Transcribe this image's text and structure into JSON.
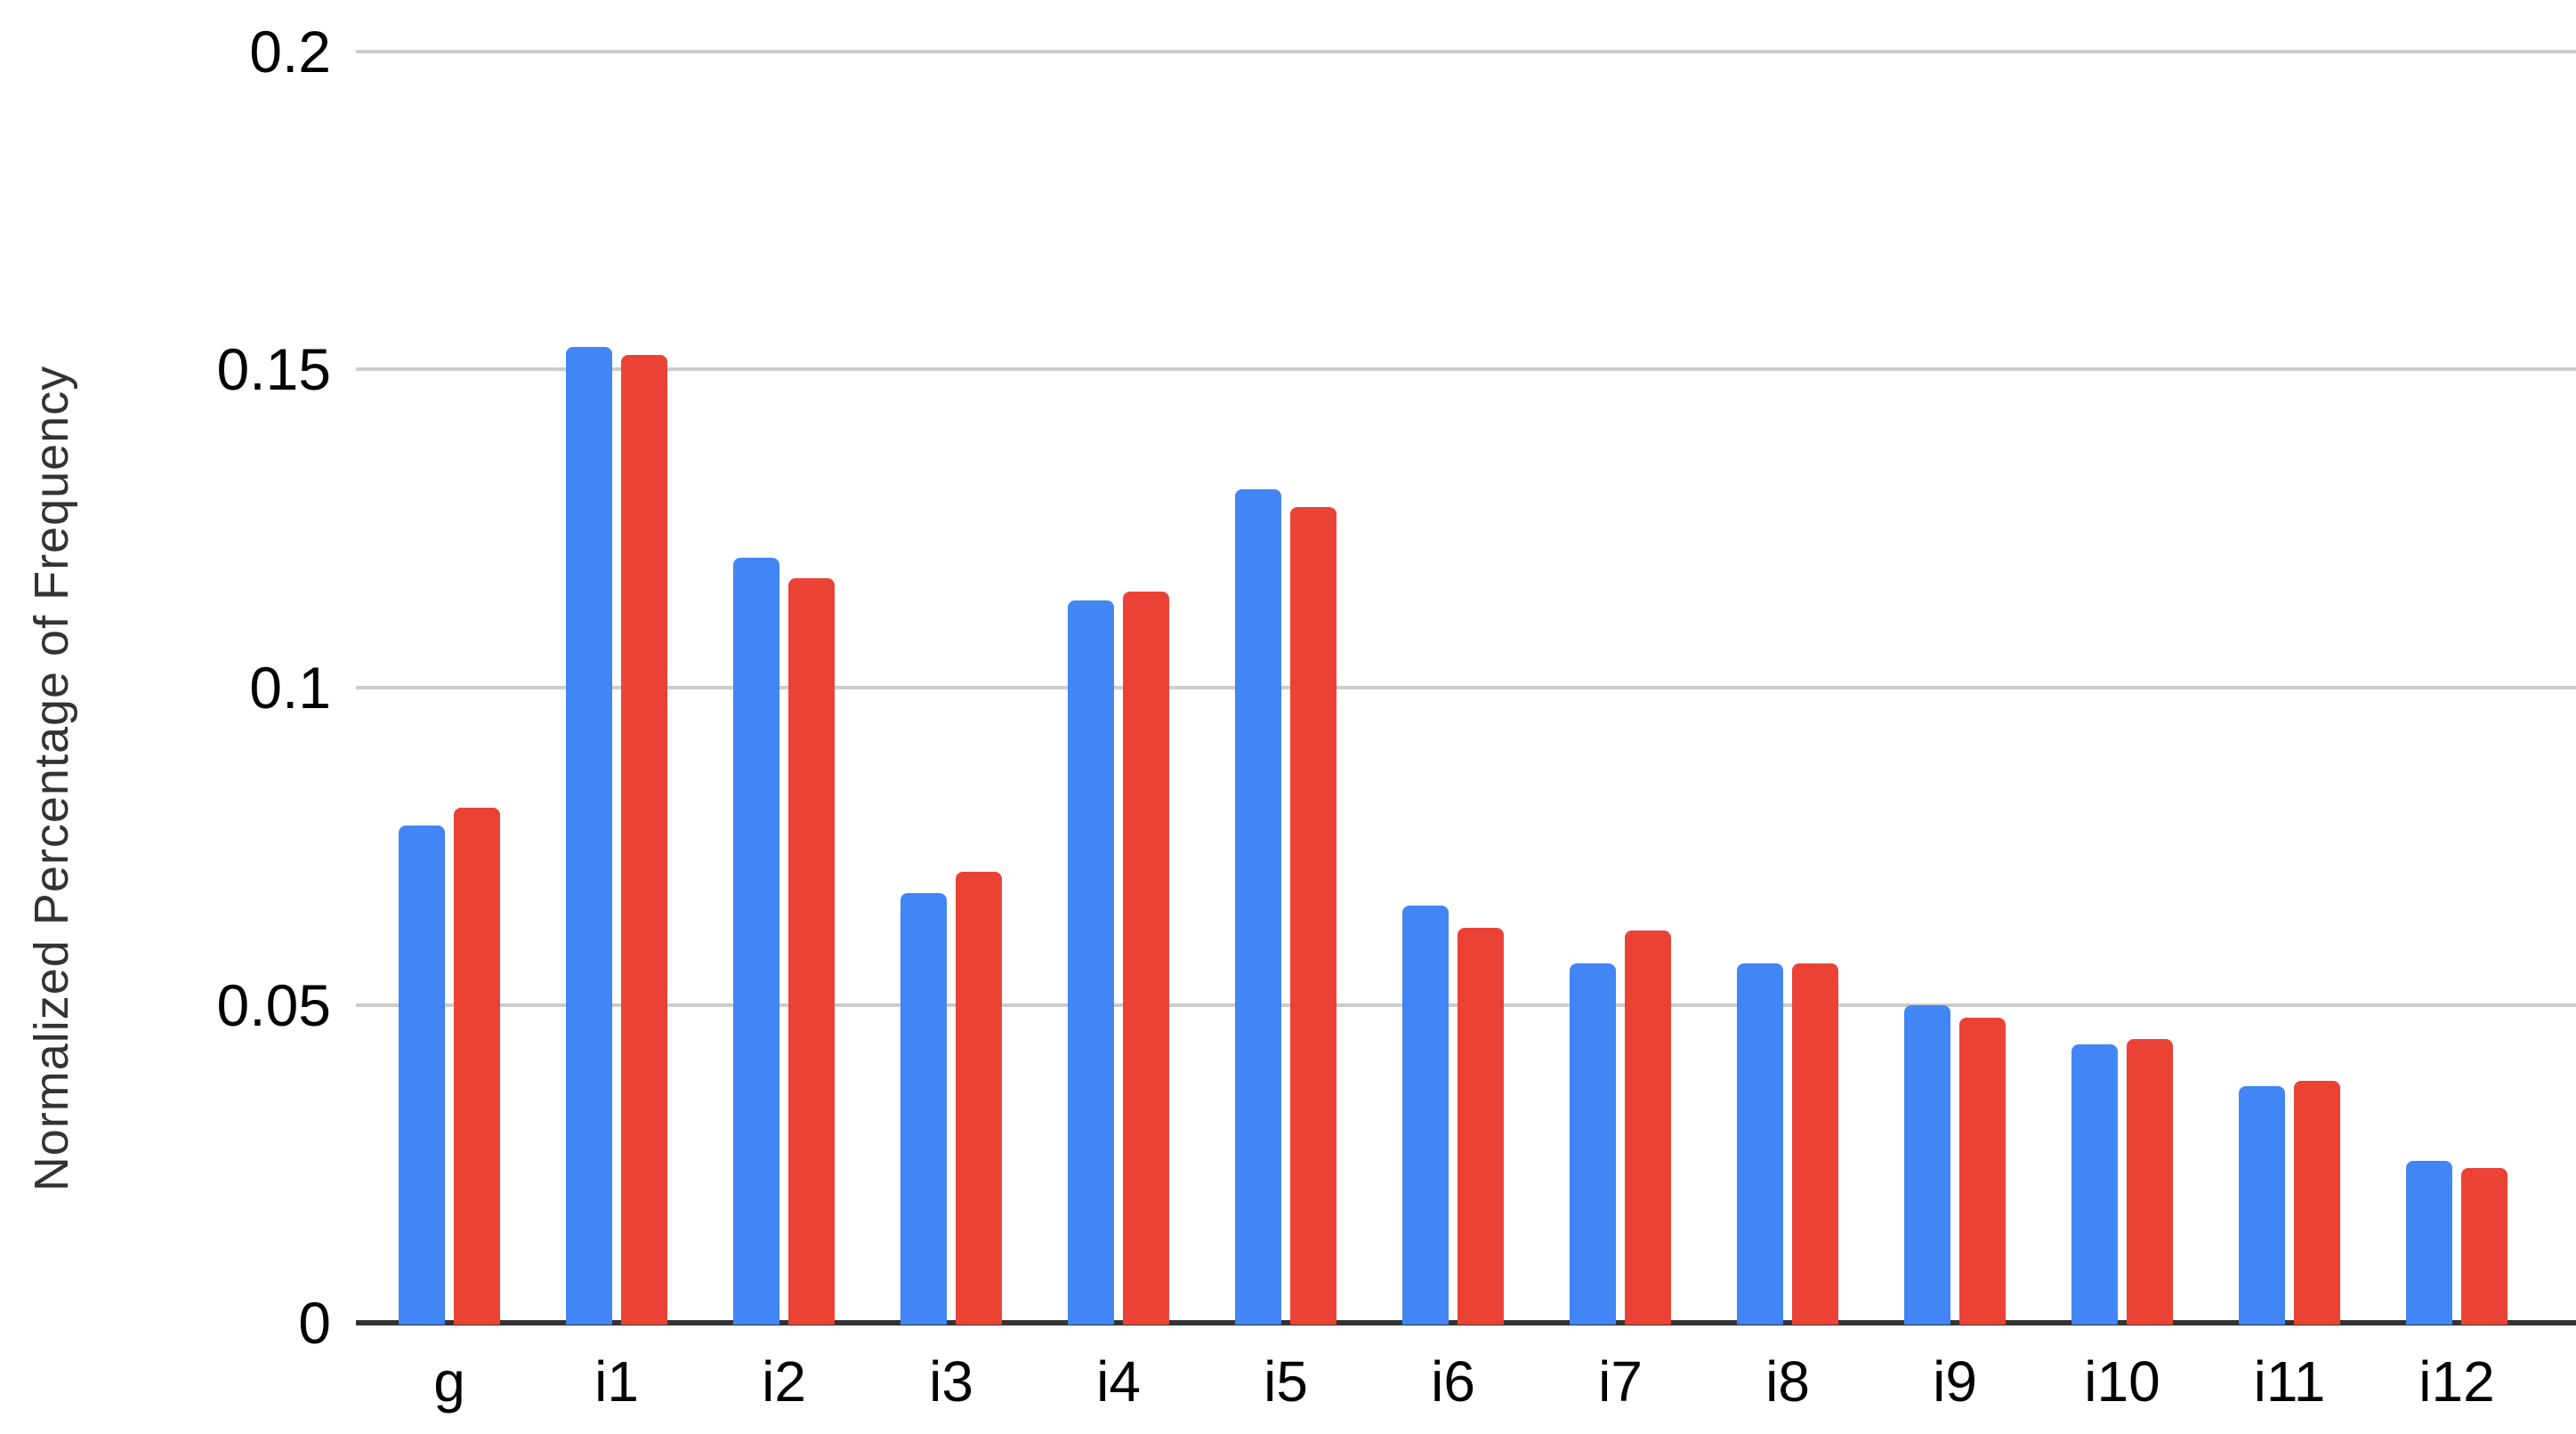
{
  "chart_data": {
    "type": "bar",
    "title": "",
    "xlabel": "",
    "ylabel": "Normalized Percentage of Frequency",
    "categories": [
      "g",
      "i1",
      "i2",
      "i3",
      "i4",
      "i5",
      "i6",
      "i7",
      "i8",
      "i9",
      "i10",
      "i11",
      "i12"
    ],
    "series": [
      {
        "name": "blue",
        "color": "#4285F4",
        "values": [
          0.0783,
          0.1535,
          0.1204,
          0.0676,
          0.1137,
          0.1311,
          0.0656,
          0.0565,
          0.0565,
          0.0499,
          0.0438,
          0.0372,
          0.0255
        ]
      },
      {
        "name": "red",
        "color": "#EA4335",
        "values": [
          0.0811,
          0.1523,
          0.1172,
          0.0709,
          0.1151,
          0.1284,
          0.0622,
          0.0617,
          0.0565,
          0.048,
          0.0446,
          0.038,
          0.0243
        ]
      }
    ],
    "ylim": [
      0,
      0.2
    ],
    "y_ticks": [
      {
        "label": "0",
        "value": 0
      },
      {
        "label": "0.05",
        "value": 0.05
      },
      {
        "label": "0.1",
        "value": 0.1
      },
      {
        "label": "0.15",
        "value": 0.15
      },
      {
        "label": "0.2",
        "value": 0.2
      }
    ],
    "grid": "horizontal",
    "legend": "none"
  },
  "colors": {
    "background": "#ffffff",
    "gridline": "#cccccc",
    "axis_line": "#333333",
    "tick_text": "#000000",
    "axis_title_text": "#333333"
  }
}
